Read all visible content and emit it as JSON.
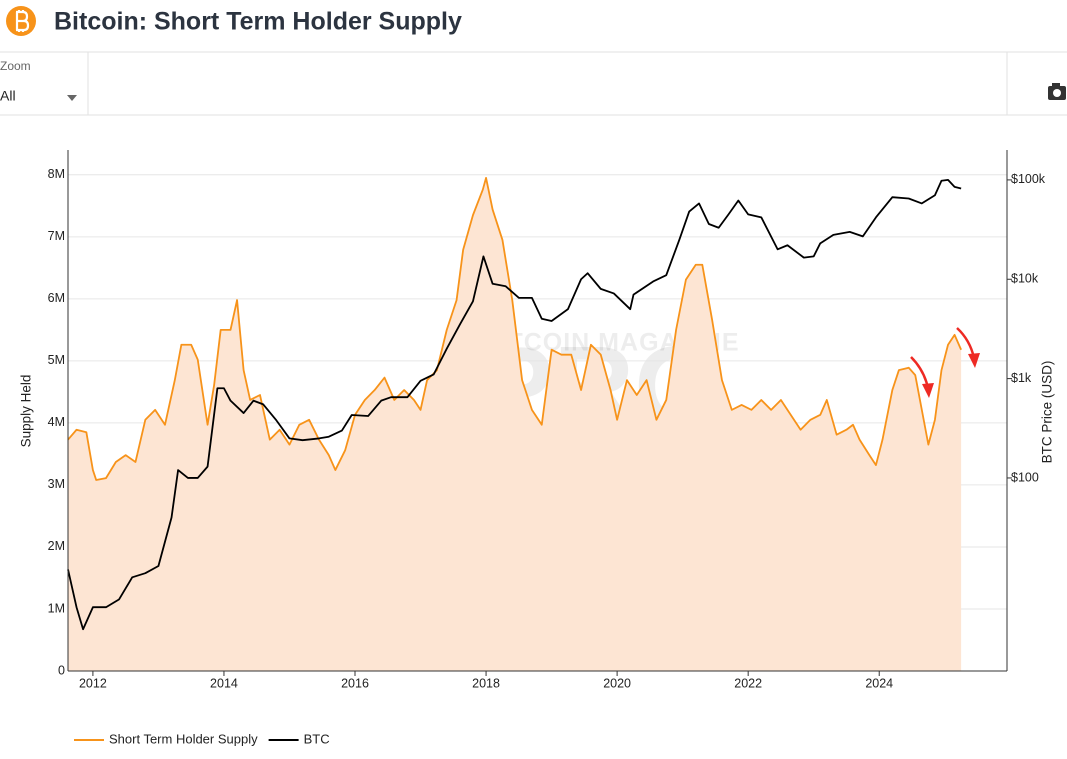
{
  "toolbar": {
    "zoom_label": "Zoom",
    "zoom_value": "All"
  },
  "chart_data": {
    "type": "line",
    "title": "Bitcoin: Short Term Holder Supply",
    "y_label": "Supply Held",
    "y2_label": "BTC Price (USD)",
    "watermark": [
      "BITCOIN MAGAZINE",
      "PRO"
    ],
    "xlim": [
      2011.62,
      2025.95
    ],
    "xticks": [
      2012,
      2014,
      2016,
      2018,
      2020,
      2022,
      2024
    ],
    "ylim": [
      0,
      8400000
    ],
    "yticks": [
      0,
      {
        "value": 1000000,
        "label": "1M"
      },
      {
        "value": 2000000,
        "label": "2M"
      },
      {
        "value": 3000000,
        "label": "3M"
      },
      {
        "value": 4000000,
        "label": "4M"
      },
      {
        "value": 5000000,
        "label": "5M"
      },
      {
        "value": 6000000,
        "label": "6M"
      },
      {
        "value": 7000000,
        "label": "7M"
      },
      {
        "value": 8000000,
        "label": "8M"
      }
    ],
    "y2lim": [
      1.14,
      200000
    ],
    "y2log": true,
    "y2ticks": [
      {
        "value": 100,
        "label": "$100"
      },
      {
        "value": 1000,
        "label": "$1k"
      },
      {
        "value": 10000,
        "label": "$10k"
      },
      {
        "value": 100000,
        "label": "$100k"
      }
    ],
    "grid": true,
    "legend": "bottom-left",
    "series": [
      {
        "name": "Short Term Holder Supply",
        "color": "#f7931a",
        "fill": "#fde5d3",
        "axis": "y",
        "x": [
          2011.62,
          2011.75,
          2011.9,
          2012.0,
          2012.05,
          2012.2,
          2012.35,
          2012.5,
          2012.65,
          2012.8,
          2012.95,
          2013.1,
          2013.25,
          2013.35,
          2013.5,
          2013.6,
          2013.75,
          2013.85,
          2013.95,
          2014.1,
          2014.2,
          2014.3,
          2014.4,
          2014.55,
          2014.7,
          2014.85,
          2015.0,
          2015.15,
          2015.3,
          2015.45,
          2015.6,
          2015.7,
          2015.85,
          2016.0,
          2016.15,
          2016.3,
          2016.45,
          2016.6,
          2016.75,
          2016.9,
          2017.0,
          2017.1,
          2017.25,
          2017.4,
          2017.55,
          2017.65,
          2017.8,
          2017.95,
          2018.0,
          2018.1,
          2018.25,
          2018.4,
          2018.55,
          2018.7,
          2018.85,
          2019.0,
          2019.15,
          2019.3,
          2019.45,
          2019.6,
          2019.75,
          2019.9,
          2020.0,
          2020.15,
          2020.3,
          2020.45,
          2020.6,
          2020.75,
          2020.9,
          2021.05,
          2021.2,
          2021.3,
          2021.45,
          2021.6,
          2021.75,
          2021.9,
          2022.05,
          2022.2,
          2022.35,
          2022.5,
          2022.65,
          2022.8,
          2022.95,
          2023.1,
          2023.2,
          2023.35,
          2023.5,
          2023.6,
          2023.7,
          2023.85,
          2023.95,
          2024.05,
          2024.2,
          2024.3,
          2024.45,
          2024.55,
          2024.65,
          2024.75,
          2024.85,
          2024.95,
          2025.05,
          2025.15,
          2025.25
        ],
        "values": [
          3730000,
          3890000,
          3850000,
          3240000,
          3080000,
          3110000,
          3370000,
          3480000,
          3370000,
          4050000,
          4210000,
          3970000,
          4690000,
          5260000,
          5260000,
          5020000,
          3970000,
          4610000,
          5500000,
          5500000,
          5980000,
          4850000,
          4370000,
          4450000,
          3730000,
          3890000,
          3650000,
          3970000,
          4050000,
          3730000,
          3480000,
          3240000,
          3560000,
          4130000,
          4370000,
          4530000,
          4730000,
          4370000,
          4530000,
          4370000,
          4210000,
          4690000,
          4850000,
          5500000,
          5980000,
          6790000,
          7350000,
          7760000,
          7950000,
          7440000,
          6950000,
          5980000,
          4690000,
          4210000,
          3970000,
          5180000,
          5100000,
          5100000,
          4530000,
          5260000,
          5100000,
          4530000,
          4050000,
          4690000,
          4450000,
          4690000,
          4050000,
          4370000,
          5500000,
          6310000,
          6550000,
          6550000,
          5660000,
          4690000,
          4210000,
          4290000,
          4210000,
          4370000,
          4210000,
          4370000,
          4130000,
          3890000,
          4050000,
          4130000,
          4370000,
          3810000,
          3890000,
          3970000,
          3730000,
          3480000,
          3320000,
          3730000,
          4530000,
          4850000,
          4890000,
          4770000,
          4210000,
          3650000,
          4050000,
          4850000,
          5260000,
          5420000,
          5180000
        ]
      },
      {
        "name": "BTC",
        "color": "#000000",
        "axis": "y2",
        "x": [
          2011.62,
          2011.75,
          2011.85,
          2012.0,
          2012.2,
          2012.4,
          2012.6,
          2012.8,
          2013.0,
          2013.2,
          2013.3,
          2013.45,
          2013.6,
          2013.75,
          2013.9,
          2014.0,
          2014.1,
          2014.3,
          2014.45,
          2014.6,
          2014.8,
          2015.0,
          2015.2,
          2015.45,
          2015.6,
          2015.8,
          2015.95,
          2016.2,
          2016.4,
          2016.55,
          2016.8,
          2017.0,
          2017.2,
          2017.4,
          2017.6,
          2017.8,
          2017.96,
          2018.1,
          2018.3,
          2018.5,
          2018.7,
          2018.85,
          2019.0,
          2019.25,
          2019.45,
          2019.55,
          2019.75,
          2019.95,
          2020.2,
          2020.25,
          2020.55,
          2020.75,
          2020.95,
          2021.1,
          2021.25,
          2021.4,
          2021.55,
          2021.7,
          2021.85,
          2022.0,
          2022.2,
          2022.45,
          2022.6,
          2022.85,
          2023.0,
          2023.1,
          2023.3,
          2023.55,
          2023.75,
          2023.95,
          2024.2,
          2024.45,
          2024.65,
          2024.85,
          2024.95,
          2025.05,
          2025.15,
          2025.25
        ],
        "values": [
          12,
          5,
          3,
          5,
          5,
          6,
          10,
          11,
          13,
          40,
          120,
          100,
          100,
          130,
          800,
          800,
          600,
          450,
          600,
          550,
          380,
          250,
          240,
          250,
          260,
          300,
          430,
          420,
          600,
          650,
          650,
          950,
          1100,
          2000,
          3500,
          6000,
          17000,
          9000,
          8500,
          6500,
          6500,
          4000,
          3800,
          5000,
          10000,
          11500,
          8000,
          7200,
          5000,
          7000,
          9500,
          11000,
          25000,
          48000,
          58000,
          36000,
          33000,
          45000,
          62000,
          45000,
          42000,
          20000,
          22000,
          16500,
          17000,
          23000,
          28000,
          30000,
          27000,
          42000,
          67000,
          65000,
          58000,
          70000,
          98000,
          100000,
          85000,
          82000
        ]
      }
    ]
  }
}
